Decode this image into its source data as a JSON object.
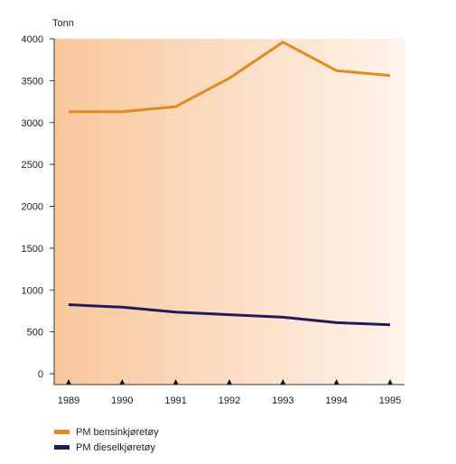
{
  "chart_data": {
    "type": "line",
    "ylabel": "Tonn",
    "x": [
      "1989",
      "1990",
      "1991",
      "1992",
      "1993",
      "1994",
      "1995"
    ],
    "ylim": [
      0,
      4000
    ],
    "yticks": [
      0,
      500,
      1000,
      1500,
      2000,
      2500,
      3000,
      3500,
      4000
    ],
    "grid": false,
    "legend_position": "bottom-left",
    "background_gradient": [
      "#f8c79c",
      "#fff3ea"
    ],
    "series": [
      {
        "name": "PM bensinkjøretøy",
        "color": "#e38a1e",
        "values": [
          3130,
          3130,
          3190,
          3530,
          3960,
          3620,
          3560
        ]
      },
      {
        "name": "PM dieselkjøretøy",
        "color": "#231a5e",
        "values": [
          825,
          795,
          735,
          705,
          675,
          610,
          585
        ]
      }
    ]
  }
}
